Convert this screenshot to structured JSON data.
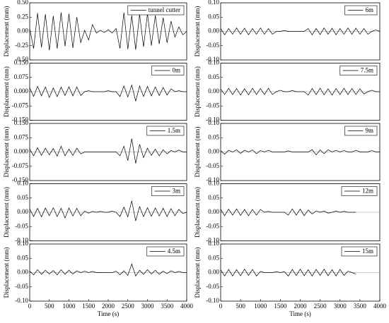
{
  "chart_data": [
    {
      "type": "line",
      "ylabel": "Displacement (mm)",
      "x": [
        0,
        100,
        200,
        300,
        400,
        500,
        600,
        700,
        800,
        900,
        1000,
        1100,
        1200,
        1300,
        1400,
        1500,
        1600,
        1700,
        1800,
        1900,
        2000,
        2100,
        2200,
        2300,
        2400,
        2500,
        2600,
        2700,
        2800,
        2900,
        3000,
        3100,
        3200,
        3300,
        3400,
        3500,
        3600,
        3700,
        3800,
        3900,
        4000
      ],
      "series": [
        {
          "name": "tunnel cutter",
          "color": "#000000",
          "values": [
            0.05,
            -0.3,
            0.32,
            -0.28,
            0.3,
            -0.33,
            0.27,
            -0.3,
            0.33,
            -0.26,
            0.31,
            -0.29,
            0.25,
            -0.2,
            0.02,
            -0.15,
            0.12,
            -0.03,
            0.02,
            -0.02,
            0.03,
            -0.03,
            0.05,
            -0.3,
            0.33,
            -0.31,
            0.28,
            -0.32,
            0.3,
            -0.27,
            0.31,
            -0.25,
            0.28,
            -0.22,
            0.24,
            -0.2,
            0.18,
            -0.1,
            0.08,
            -0.06,
            0
          ]
        }
      ],
      "xlim": [
        0,
        4000
      ],
      "ylim": [
        -0.5,
        0.5
      ],
      "yticks": [
        {
          "value": -0.5,
          "label": "-0.50"
        },
        -0.25,
        {
          "value": 0,
          "label": "0.00"
        },
        0.25,
        {
          "value": 0.5,
          "label": "0.50"
        }
      ]
    },
    {
      "type": "line",
      "ylabel": "Displacement (mm)",
      "x": [
        0,
        100,
        200,
        300,
        400,
        500,
        600,
        700,
        800,
        900,
        1000,
        1100,
        1200,
        1300,
        1400,
        1500,
        1600,
        1700,
        1800,
        1900,
        2000,
        2100,
        2200,
        2300,
        2400,
        2500,
        2600,
        2700,
        2800,
        2900,
        3000,
        3100,
        3200,
        3300,
        3400,
        3500,
        3600,
        3700,
        3800,
        3900,
        4000
      ],
      "series": [
        {
          "name": "0m",
          "color": "#000000",
          "values": [
            0.02,
            -0.025,
            0.028,
            -0.022,
            0.025,
            -0.03,
            0.02,
            -0.026,
            0.024,
            -0.02,
            0.026,
            -0.022,
            0.025,
            -0.02,
            0,
            0.005,
            0,
            0,
            0,
            0,
            0.005,
            0,
            0,
            -0.025,
            0.03,
            -0.028,
            0.035,
            -0.05,
            0.03,
            -0.025,
            0.028,
            -0.022,
            0.025,
            -0.02,
            0.022,
            -0.018,
            0.015,
            0,
            0.005,
            0,
            0
          ]
        }
      ],
      "xlim": [
        0,
        4000
      ],
      "ylim": [
        -0.15,
        0.15
      ],
      "yticks": [
        {
          "value": -0.15,
          "label": "-0.150"
        },
        -0.075,
        {
          "value": 0,
          "label": "0.000"
        },
        0.075,
        {
          "value": 0.15,
          "label": "0.150"
        }
      ]
    },
    {
      "type": "line",
      "ylabel": "Displacement (mm)",
      "x": [
        0,
        100,
        200,
        300,
        400,
        500,
        600,
        700,
        800,
        900,
        1000,
        1100,
        1200,
        1300,
        1400,
        1500,
        1600,
        1700,
        1800,
        1900,
        2000,
        2100,
        2200,
        2300,
        2400,
        2500,
        2600,
        2700,
        2800,
        2900,
        3000,
        3100,
        3200,
        3300,
        3400,
        3500,
        3600,
        3700,
        3800,
        3900,
        4000
      ],
      "series": [
        {
          "name": "1.5m",
          "color": "#000000",
          "values": [
            0.015,
            -0.02,
            0.022,
            -0.018,
            0.02,
            -0.015,
            0.018,
            -0.022,
            0.03,
            -0.02,
            0.015,
            -0.018,
            0.02,
            -0.01,
            0,
            0,
            0,
            0,
            0,
            0,
            0,
            0,
            0,
            -0.02,
            0.03,
            -0.045,
            0.07,
            -0.06,
            0.04,
            -0.03,
            0.02,
            -0.018,
            0.015,
            -0.02,
            0.012,
            -0.01,
            0.008,
            0,
            0.01,
            0,
            0
          ]
        }
      ],
      "xlim": [
        0,
        4000
      ],
      "ylim": [
        -0.15,
        0.15
      ],
      "yticks": [
        {
          "value": -0.15,
          "label": "-0.150"
        },
        -0.075,
        {
          "value": 0,
          "label": "0.000"
        },
        0.075,
        {
          "value": 0.15,
          "label": "0.150"
        }
      ]
    },
    {
      "type": "line",
      "ylabel": "Displacement (mm)",
      "x": [
        0,
        100,
        200,
        300,
        400,
        500,
        600,
        700,
        800,
        900,
        1000,
        1100,
        1200,
        1300,
        1400,
        1500,
        1600,
        1700,
        1800,
        1900,
        2000,
        2100,
        2200,
        2300,
        2400,
        2500,
        2600,
        2700,
        2800,
        2900,
        3000,
        3100,
        3200,
        3300,
        3400,
        3500,
        3600,
        3700,
        3800,
        3900,
        4000
      ],
      "series": [
        {
          "name": "3m",
          "color": "#000000",
          "values": [
            0.012,
            -0.015,
            0.014,
            -0.016,
            0.015,
            -0.012,
            0.016,
            -0.015,
            0.014,
            -0.02,
            0.015,
            -0.013,
            0.014,
            -0.012,
            0.004,
            -0.003,
            0.003,
            0,
            0.003,
            0,
            0,
            0.004,
            0,
            -0.015,
            0.018,
            -0.016,
            0.04,
            -0.03,
            0.02,
            -0.015,
            0.016,
            -0.014,
            0.015,
            -0.013,
            0.014,
            -0.015,
            0.013,
            -0.012,
            0.01,
            -0.004,
            0
          ]
        }
      ],
      "xlim": [
        0,
        4000
      ],
      "ylim": [
        -0.1,
        0.1
      ],
      "yticks": [
        {
          "value": -0.1,
          "label": "-0.10"
        },
        -0.05,
        {
          "value": 0,
          "label": "0.00"
        },
        0.05,
        {
          "value": 0.1,
          "label": "0.10"
        }
      ]
    },
    {
      "type": "line",
      "ylabel": "Displacement (mm)",
      "xlabel": "Time (s)",
      "x": [
        0,
        100,
        200,
        300,
        400,
        500,
        600,
        700,
        800,
        900,
        1000,
        1100,
        1200,
        1300,
        1400,
        1500,
        1600,
        1700,
        1800,
        1900,
        2000,
        2100,
        2200,
        2300,
        2400,
        2500,
        2600,
        2700,
        2800,
        2900,
        3000,
        3100,
        3200,
        3300,
        3400,
        3500,
        3600,
        3700,
        3800,
        3900,
        4000
      ],
      "series": [
        {
          "name": "4.5m",
          "color": "#000000",
          "values": [
            0.005,
            -0.008,
            0.01,
            -0.006,
            0.008,
            -0.005,
            0.007,
            -0.008,
            0.01,
            -0.006,
            0.008,
            -0.005,
            0.006,
            0,
            0.005,
            0,
            0.004,
            0,
            0,
            0,
            0,
            0,
            0.005,
            -0.008,
            0.006,
            -0.01,
            0.03,
            -0.012,
            0.008,
            -0.006,
            0.01,
            -0.005,
            0.008,
            -0.006,
            0.005,
            -0.004,
            0.006,
            0,
            0.004,
            0,
            0
          ]
        }
      ],
      "xlim": [
        0,
        4000
      ],
      "xticks": [
        0,
        500,
        1000,
        1500,
        2000,
        2500,
        3000,
        3500,
        4000
      ],
      "ylim": [
        -0.1,
        0.1
      ],
      "yticks": [
        {
          "value": -0.1,
          "label": "-0.10"
        },
        -0.05,
        {
          "value": 0,
          "label": "0.00"
        },
        0.05,
        {
          "value": 0.1,
          "label": "0.10"
        }
      ]
    },
    {
      "type": "line",
      "ylabel": "Displacement (mm)",
      "x": [
        0,
        100,
        200,
        300,
        400,
        500,
        600,
        700,
        800,
        900,
        1000,
        1100,
        1200,
        1300,
        1400,
        1500,
        1600,
        1700,
        1800,
        1900,
        2000,
        2100,
        2200,
        2300,
        2400,
        2500,
        2600,
        2700,
        2800,
        2900,
        3000,
        3100,
        3200,
        3300,
        3400,
        3500,
        3600,
        3700,
        3800,
        3900,
        4000
      ],
      "series": [
        {
          "name": "6m",
          "color": "#000000",
          "values": [
            0.01,
            -0.012,
            0.01,
            -0.01,
            0.012,
            -0.01,
            0.011,
            -0.012,
            0.01,
            -0.01,
            0.012,
            -0.01,
            0.01,
            -0.01,
            0,
            0,
            0.003,
            0,
            0,
            0,
            0,
            0,
            0.01,
            -0.012,
            0.01,
            -0.011,
            0.012,
            -0.01,
            0.011,
            -0.012,
            0.01,
            -0.01,
            0.012,
            -0.01,
            0.011,
            -0.01,
            0.01,
            -0.01,
            0,
            0.005,
            0
          ]
        }
      ],
      "xlim": [
        0,
        4000
      ],
      "ylim": [
        -0.1,
        0.1
      ],
      "yticks": [
        {
          "value": -0.1,
          "label": "-0.10"
        },
        -0.05,
        {
          "value": 0,
          "label": "0.00"
        },
        0.05,
        {
          "value": 0.1,
          "label": "0.10"
        }
      ]
    },
    {
      "type": "line",
      "ylabel": "Displacement (mm)",
      "x": [
        0,
        100,
        200,
        300,
        400,
        500,
        600,
        700,
        800,
        900,
        1000,
        1100,
        1200,
        1300,
        1400,
        1500,
        1600,
        1700,
        1800,
        1900,
        2000,
        2100,
        2200,
        2300,
        2400,
        2500,
        2600,
        2700,
        2800,
        2900,
        3000,
        3100,
        3200,
        3300,
        3400,
        3500,
        3600,
        3700,
        3800,
        3900,
        4000
      ],
      "series": [
        {
          "name": "7.5m",
          "color": "#000000",
          "values": [
            0.01,
            -0.01,
            0.012,
            -0.01,
            0.011,
            -0.012,
            0.01,
            -0.011,
            0.012,
            -0.01,
            0.011,
            -0.01,
            0.012,
            -0.01,
            0,
            0.005,
            0,
            0,
            0.004,
            0,
            0,
            0,
            -0.012,
            0.011,
            -0.01,
            0.012,
            -0.011,
            0.01,
            -0.012,
            0.011,
            -0.01,
            0.012,
            -0.01,
            0.011,
            -0.01,
            0.01,
            -0.008,
            0,
            0.005,
            0,
            0
          ]
        }
      ],
      "xlim": [
        0,
        4000
      ],
      "ylim": [
        -0.1,
        0.1
      ],
      "yticks": [
        {
          "value": -0.1,
          "label": "-0.10"
        },
        -0.05,
        {
          "value": 0,
          "label": "0.00"
        },
        0.05,
        {
          "value": 0.1,
          "label": "0.10"
        }
      ]
    },
    {
      "type": "line",
      "ylabel": "Displacement (mm)",
      "x": [
        0,
        100,
        200,
        300,
        400,
        500,
        600,
        700,
        800,
        900,
        1000,
        1100,
        1200,
        1300,
        1400,
        1500,
        1600,
        1700,
        1800,
        1900,
        2000,
        2100,
        2200,
        2300,
        2400,
        2500,
        2600,
        2700,
        2800,
        2900,
        3000,
        3100,
        3200,
        3300,
        3400,
        3500,
        3600,
        3700,
        3800,
        3900,
        4000
      ],
      "series": [
        {
          "name": "9m",
          "color": "#000000",
          "values": [
            0.005,
            -0.008,
            0.006,
            0,
            0.008,
            -0.005,
            0.006,
            0,
            0.007,
            -0.006,
            0.005,
            0,
            0.006,
            0,
            0,
            0,
            0,
            0.004,
            0,
            0,
            0,
            0,
            0,
            0.008,
            -0.01,
            0.007,
            -0.006,
            0.008,
            0,
            0.006,
            0,
            0.005,
            0,
            0,
            0.006,
            0,
            0,
            0,
            0.005,
            0,
            0
          ]
        }
      ],
      "xlim": [
        0,
        4000
      ],
      "ylim": [
        -0.1,
        0.1
      ],
      "yticks": [
        {
          "value": -0.1,
          "label": "-0.10"
        },
        -0.05,
        {
          "value": 0,
          "label": "0.00"
        },
        0.05,
        {
          "value": 0.1,
          "label": "0.10"
        }
      ]
    },
    {
      "type": "line",
      "ylabel": "Displacement (mm)",
      "x": [
        0,
        100,
        200,
        300,
        400,
        500,
        600,
        700,
        800,
        900,
        1000,
        1100,
        1200,
        1300,
        1400,
        1500,
        1600,
        1700,
        1800,
        1900,
        2000,
        2100,
        2200,
        2300,
        2400,
        2500,
        2600,
        2700,
        2800,
        2900,
        3000,
        3100,
        3200,
        3300,
        3400,
        3500,
        3600,
        3700,
        3800,
        3900,
        4000
      ],
      "series": [
        {
          "name": "12m",
          "color": "#000000",
          "values": [
            0.01,
            -0.012,
            0.011,
            -0.01,
            0.012,
            -0.011,
            0.01,
            -0.012,
            0.01,
            -0.01,
            0.01,
            0,
            0.003,
            0,
            0,
            0,
            0,
            -0.01,
            0.012,
            -0.01,
            0.011,
            -0.012,
            0.008,
            -0.006,
            0.005,
            0,
            0.004,
            -0.003,
            0,
            0.004,
            0,
            0.003,
            0,
            0,
            0,
            null,
            null,
            null,
            null,
            null,
            null
          ]
        }
      ],
      "xlim": [
        0,
        4000
      ],
      "ylim": [
        -0.1,
        0.1
      ],
      "yticks": [
        {
          "value": -0.1,
          "label": "-0.10"
        },
        -0.05,
        {
          "value": 0,
          "label": "0.00"
        },
        0.05,
        {
          "value": 0.1,
          "label": "0.10"
        }
      ]
    },
    {
      "type": "line",
      "ylabel": "Displacement (mm)",
      "xlabel": "Time (s)",
      "x": [
        0,
        100,
        200,
        300,
        400,
        500,
        600,
        700,
        800,
        900,
        1000,
        1100,
        1200,
        1300,
        1400,
        1500,
        1600,
        1700,
        1800,
        1900,
        2000,
        2100,
        2200,
        2300,
        2400,
        2500,
        2600,
        2700,
        2800,
        2900,
        3000,
        3100,
        3200,
        3300,
        3400,
        3500,
        3600,
        3700,
        3800,
        3900,
        4000
      ],
      "series": [
        {
          "name": "15m",
          "color": "#000000",
          "values": [
            0.01,
            -0.012,
            0.011,
            -0.012,
            0.01,
            -0.011,
            0.012,
            -0.01,
            0.011,
            -0.012,
            0.004,
            0,
            0,
            0,
            0.003,
            0,
            0.003,
            -0.012,
            0.011,
            -0.01,
            0.012,
            -0.011,
            0.01,
            -0.012,
            0.011,
            -0.01,
            0.012,
            -0.011,
            0.01,
            -0.012,
            0.011,
            -0.01,
            0.005,
            0,
            -0.005,
            null,
            null,
            null,
            null,
            null,
            null
          ]
        }
      ],
      "xlim": [
        0,
        4000
      ],
      "xticks": [
        0,
        500,
        1000,
        1500,
        2000,
        2500,
        3000,
        3500,
        4000
      ],
      "ylim": [
        -0.1,
        0.1
      ],
      "yticks": [
        {
          "value": -0.1,
          "label": "-0.10"
        },
        -0.05,
        {
          "value": 0,
          "label": "0.00"
        },
        0.05,
        {
          "value": 0.1,
          "label": "0.10"
        }
      ]
    }
  ]
}
